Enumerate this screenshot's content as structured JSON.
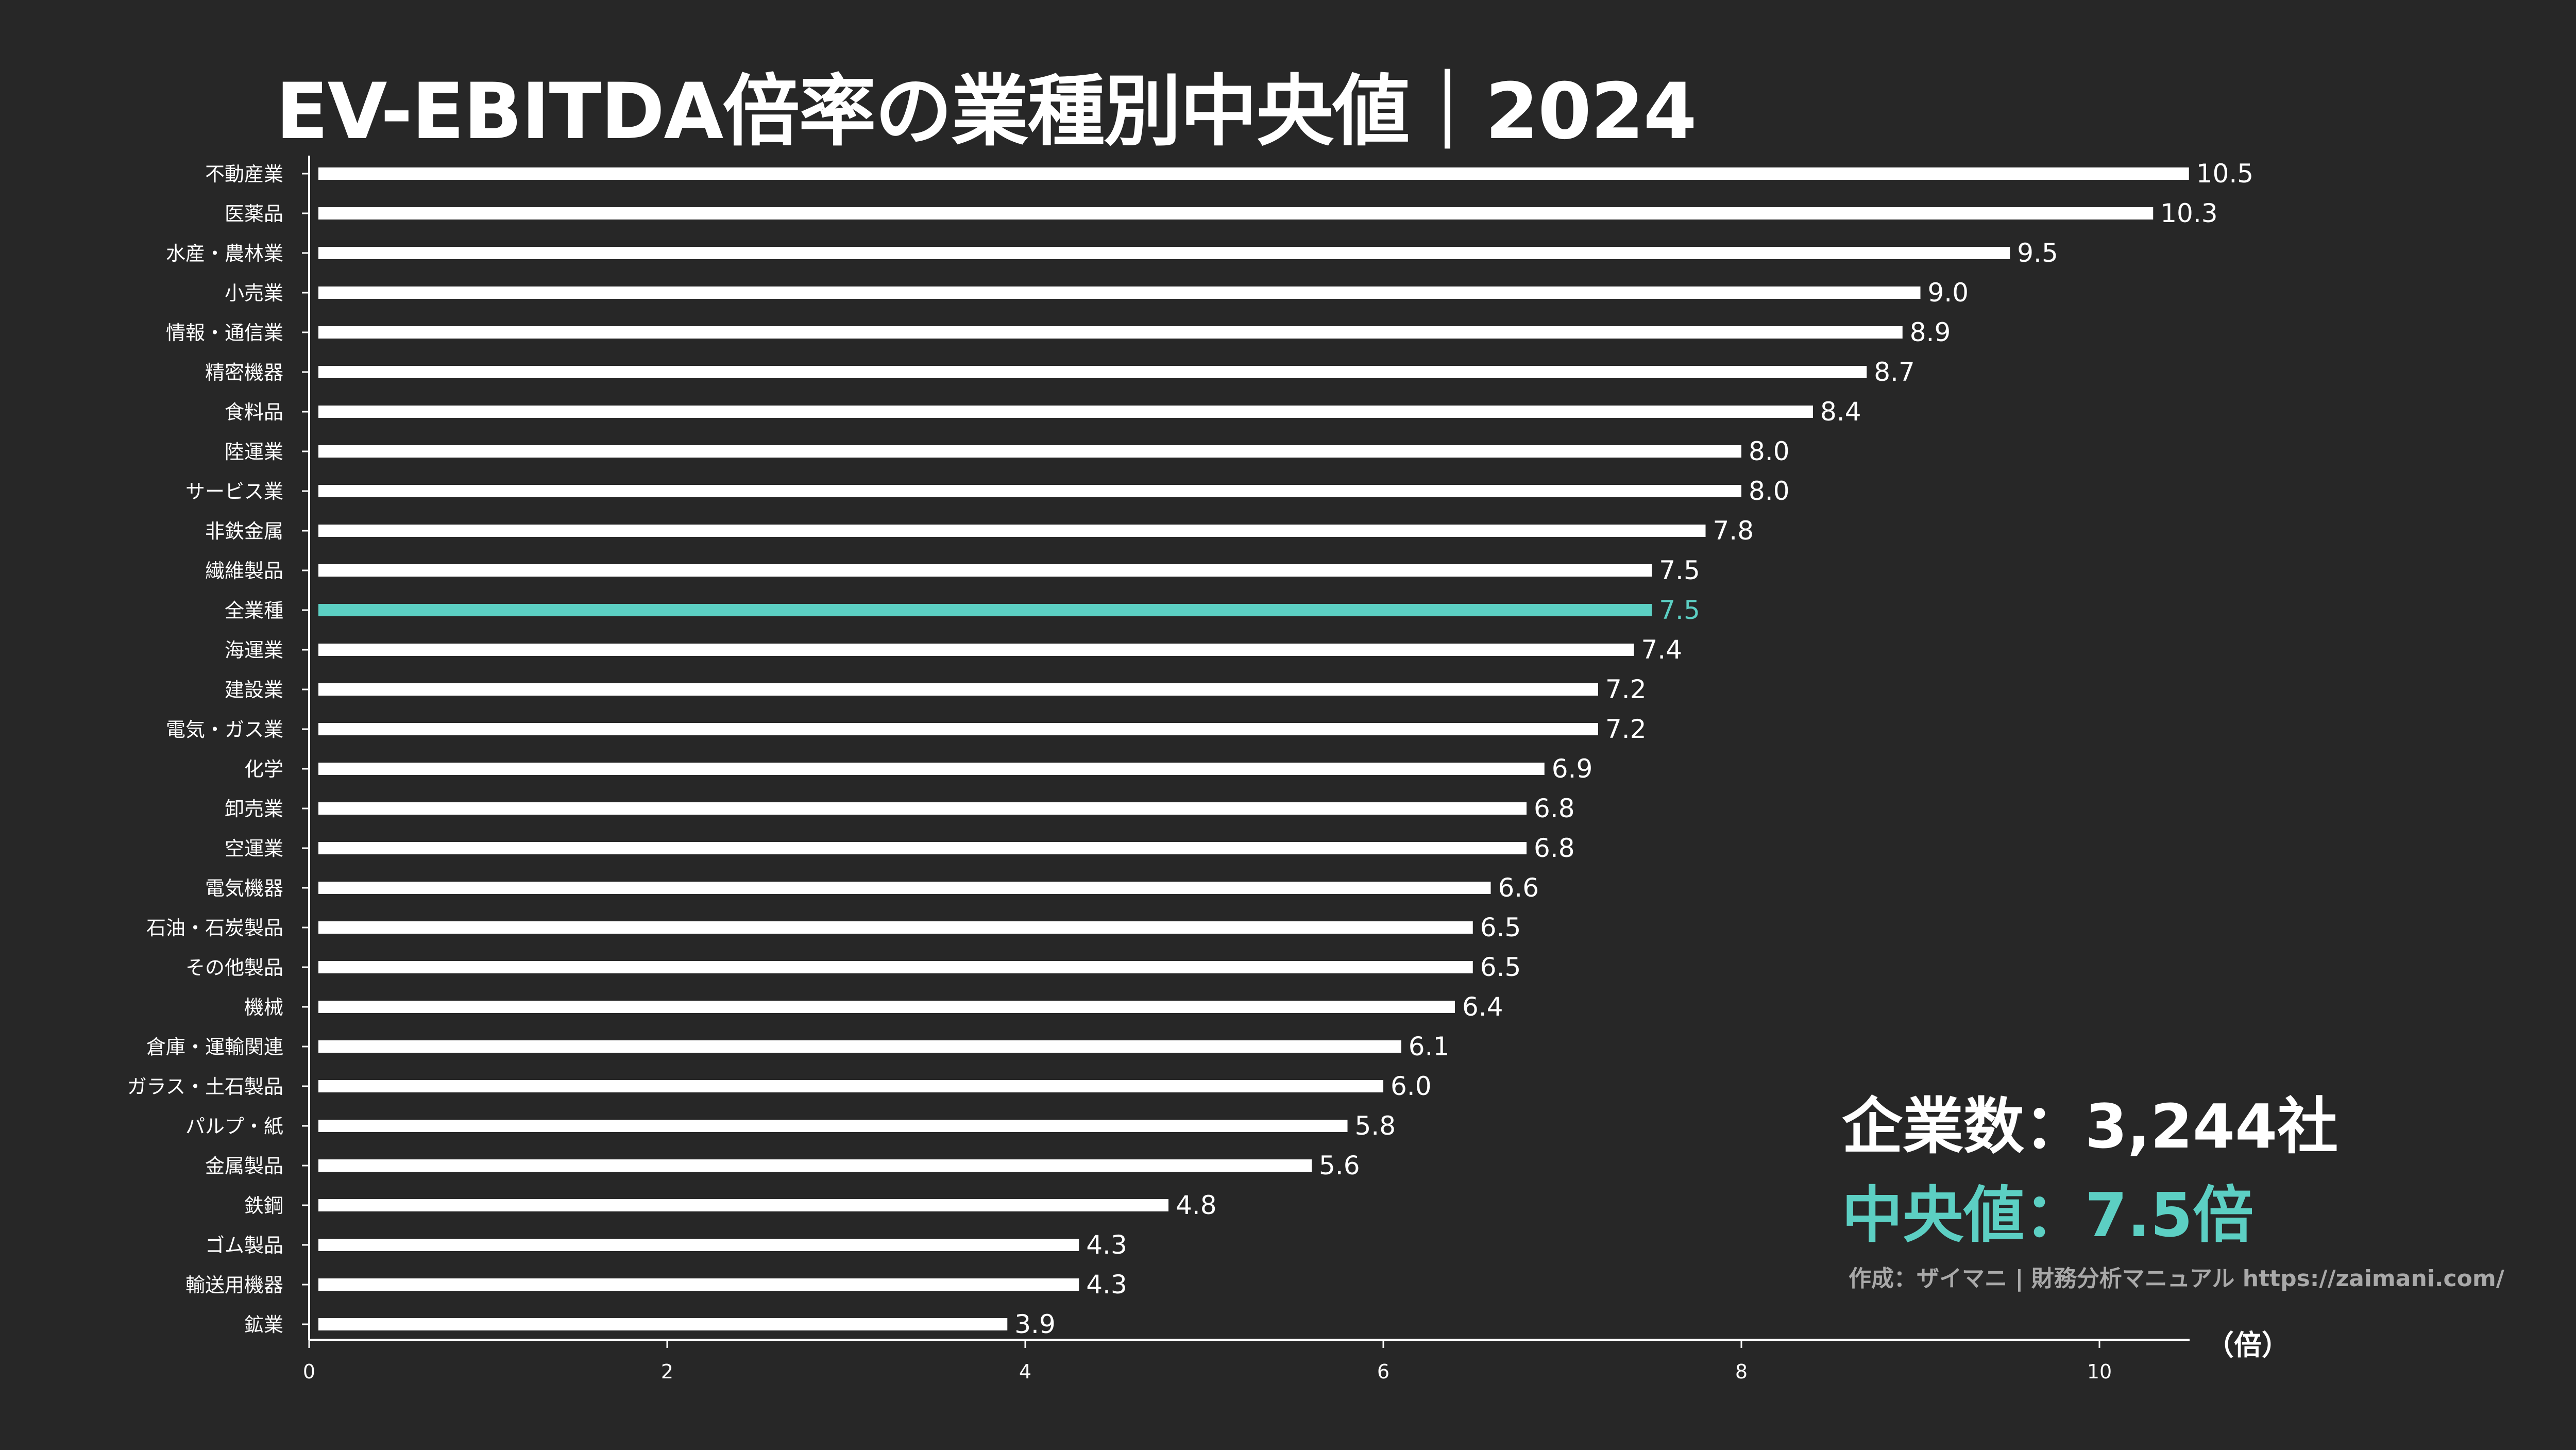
{
  "chart_data": {
    "type": "bar",
    "orientation": "horizontal",
    "title": "EV-EBITDA倍率の業種別中央値｜2024",
    "xlabel": "（倍）",
    "ylabel": "",
    "xlim": [
      0,
      10.5
    ],
    "xticks": [
      0,
      2,
      4,
      6,
      8,
      10
    ],
    "grid": false,
    "categories": [
      "不動産業",
      "医薬品",
      "水産・農林業",
      "小売業",
      "情報・通信業",
      "精密機器",
      "食料品",
      "陸運業",
      "サービス業",
      "非鉄金属",
      "繊維製品",
      "全業種",
      "海運業",
      "建設業",
      "電気・ガス業",
      "化学",
      "卸売業",
      "空運業",
      "電気機器",
      "石油・石炭製品",
      "その他製品",
      "機械",
      "倉庫・運輸関連",
      "ガラス・土石製品",
      "パルプ・紙",
      "金属製品",
      "鉄鋼",
      "ゴム製品",
      "輸送用機器",
      "鉱業"
    ],
    "values": [
      10.5,
      10.3,
      9.5,
      9.0,
      8.9,
      8.7,
      8.4,
      8.0,
      8.0,
      7.8,
      7.5,
      7.5,
      7.4,
      7.2,
      7.2,
      6.9,
      6.8,
      6.8,
      6.6,
      6.5,
      6.5,
      6.4,
      6.1,
      6.0,
      5.8,
      5.6,
      4.8,
      4.3,
      4.3,
      3.9
    ],
    "value_labels": [
      "10.5",
      "10.3",
      "9.5",
      "9.0",
      "8.9",
      "8.7",
      "8.4",
      "8.0",
      "8.0",
      "7.8",
      "7.5",
      "7.5",
      "7.4",
      "7.2",
      "7.2",
      "6.9",
      "6.8",
      "6.8",
      "6.6",
      "6.5",
      "6.5",
      "6.4",
      "6.1",
      "6.0",
      "5.8",
      "5.6",
      "4.8",
      "4.3",
      "4.3",
      "3.9"
    ],
    "highlight_category": "全業種"
  },
  "stats": {
    "companies": "企業数：3,244社",
    "median": "中央値：7.5倍"
  },
  "credit": "作成：ザイマニ | 財務分析マニュアル https://zaimani.com/",
  "colors": {
    "background": "#272727",
    "bar": "#ffffff",
    "highlight": "#5ccfc3",
    "text": "#ffffff",
    "credit": "#a9a9a9"
  }
}
